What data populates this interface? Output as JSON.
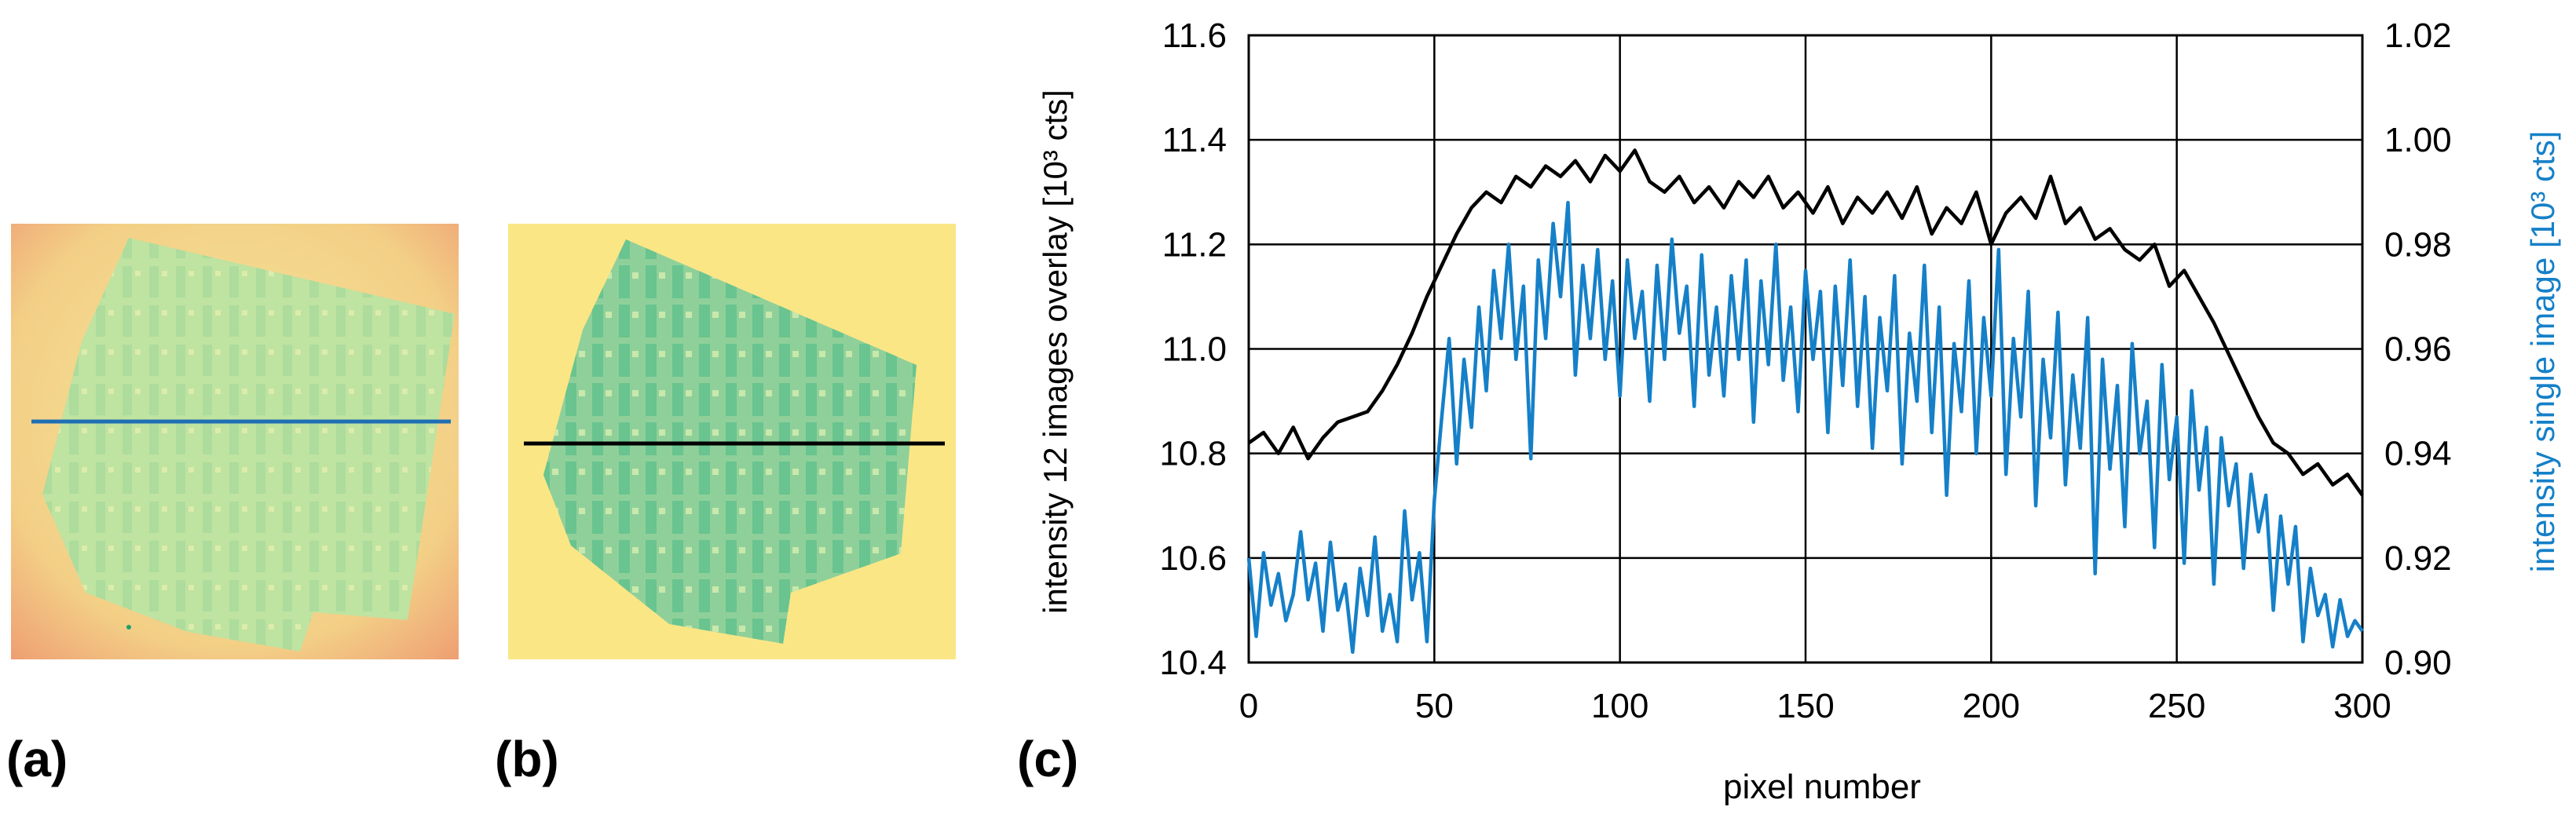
{
  "panels": {
    "a": {
      "label": "(a)",
      "line_color": "#1F6FB5"
    },
    "b": {
      "label": "(b)",
      "line_color": "#000000"
    },
    "c": {
      "label": "(c)"
    }
  },
  "colors": {
    "overlay_series": "#000000",
    "single_series": "#1580C8",
    "right_axis_label": "#1580C8",
    "grid": "#000000"
  },
  "chart_data": {
    "type": "line",
    "xlabel": "pixel number",
    "ylabel": "intensity 12 images overlay [10³ cts]",
    "ylabel_right": "intensity single image [10³ cts]",
    "xlim": [
      0,
      300
    ],
    "ylim": [
      10.4,
      11.6
    ],
    "ylim_right": [
      0.9,
      1.02
    ],
    "xticks": [
      "0",
      "50",
      "100",
      "150",
      "200",
      "250",
      "300"
    ],
    "yticks": [
      "10.4",
      "10.6",
      "10.8",
      "11.0",
      "11.2",
      "11.4",
      "11.6"
    ],
    "yticks_right": [
      "0.90",
      "0.92",
      "0.94",
      "0.96",
      "0.98",
      "1.00",
      "1.02"
    ],
    "grid": true,
    "series": [
      {
        "name": "intensity 12 images overlay",
        "axis": "left",
        "color": "#000000",
        "x": [
          0,
          4,
          8,
          12,
          16,
          20,
          24,
          28,
          32,
          36,
          40,
          44,
          48,
          52,
          56,
          60,
          64,
          68,
          72,
          76,
          80,
          84,
          88,
          92,
          96,
          100,
          104,
          108,
          112,
          116,
          120,
          124,
          128,
          132,
          136,
          140,
          144,
          148,
          152,
          156,
          160,
          164,
          168,
          172,
          176,
          180,
          184,
          188,
          192,
          196,
          200,
          204,
          208,
          212,
          216,
          220,
          224,
          228,
          232,
          236,
          240,
          244,
          248,
          252,
          256,
          260,
          264,
          268,
          272,
          276,
          280,
          284,
          288,
          292,
          296,
          300
        ],
        "values": [
          10.82,
          10.84,
          10.8,
          10.85,
          10.79,
          10.83,
          10.86,
          10.87,
          10.88,
          10.92,
          10.97,
          11.03,
          11.1,
          11.16,
          11.22,
          11.27,
          11.3,
          11.28,
          11.33,
          11.31,
          11.35,
          11.33,
          11.36,
          11.32,
          11.37,
          11.34,
          11.38,
          11.32,
          11.3,
          11.33,
          11.28,
          11.31,
          11.27,
          11.32,
          11.29,
          11.33,
          11.27,
          11.3,
          11.26,
          11.31,
          11.24,
          11.29,
          11.26,
          11.3,
          11.25,
          11.31,
          11.22,
          11.27,
          11.24,
          11.3,
          11.2,
          11.26,
          11.29,
          11.25,
          11.33,
          11.24,
          11.27,
          11.21,
          11.23,
          11.19,
          11.17,
          11.2,
          11.12,
          11.15,
          11.1,
          11.05,
          10.99,
          10.93,
          10.87,
          10.82,
          10.8,
          10.76,
          10.78,
          10.74,
          10.76,
          10.72
        ]
      },
      {
        "name": "intensity single image",
        "axis": "right",
        "color": "#1580C8",
        "x": [
          0,
          2,
          4,
          6,
          8,
          10,
          12,
          14,
          16,
          18,
          20,
          22,
          24,
          26,
          28,
          30,
          32,
          34,
          36,
          38,
          40,
          42,
          44,
          46,
          48,
          50,
          52,
          54,
          56,
          58,
          60,
          62,
          64,
          66,
          68,
          70,
          72,
          74,
          76,
          78,
          80,
          82,
          84,
          86,
          88,
          90,
          92,
          94,
          96,
          98,
          100,
          102,
          104,
          106,
          108,
          110,
          112,
          114,
          116,
          118,
          120,
          122,
          124,
          126,
          128,
          130,
          132,
          134,
          136,
          138,
          140,
          142,
          144,
          146,
          148,
          150,
          152,
          154,
          156,
          158,
          160,
          162,
          164,
          166,
          168,
          170,
          172,
          174,
          176,
          178,
          180,
          182,
          184,
          186,
          188,
          190,
          192,
          194,
          196,
          198,
          200,
          202,
          204,
          206,
          208,
          210,
          212,
          214,
          216,
          218,
          220,
          222,
          224,
          226,
          228,
          230,
          232,
          234,
          236,
          238,
          240,
          242,
          244,
          246,
          248,
          250,
          252,
          254,
          256,
          258,
          260,
          262,
          264,
          266,
          268,
          270,
          272,
          274,
          276,
          278,
          280,
          282,
          284,
          286,
          288,
          290,
          292,
          294,
          296,
          298,
          300
        ],
        "values": [
          0.92,
          0.905,
          0.921,
          0.911,
          0.917,
          0.908,
          0.913,
          0.925,
          0.912,
          0.919,
          0.906,
          0.923,
          0.91,
          0.915,
          0.902,
          0.918,
          0.909,
          0.924,
          0.906,
          0.913,
          0.904,
          0.929,
          0.912,
          0.921,
          0.904,
          0.931,
          0.947,
          0.962,
          0.938,
          0.958,
          0.945,
          0.968,
          0.952,
          0.975,
          0.962,
          0.98,
          0.958,
          0.972,
          0.939,
          0.977,
          0.962,
          0.984,
          0.97,
          0.988,
          0.955,
          0.976,
          0.962,
          0.979,
          0.958,
          0.973,
          0.951,
          0.977,
          0.962,
          0.971,
          0.95,
          0.976,
          0.958,
          0.981,
          0.963,
          0.972,
          0.949,
          0.978,
          0.955,
          0.968,
          0.951,
          0.974,
          0.958,
          0.977,
          0.946,
          0.973,
          0.957,
          0.98,
          0.954,
          0.968,
          0.948,
          0.975,
          0.958,
          0.971,
          0.944,
          0.972,
          0.953,
          0.977,
          0.949,
          0.97,
          0.941,
          0.966,
          0.952,
          0.974,
          0.938,
          0.963,
          0.95,
          0.976,
          0.944,
          0.968,
          0.932,
          0.961,
          0.948,
          0.973,
          0.94,
          0.966,
          0.951,
          0.979,
          0.936,
          0.962,
          0.947,
          0.971,
          0.93,
          0.958,
          0.943,
          0.967,
          0.934,
          0.955,
          0.941,
          0.966,
          0.917,
          0.958,
          0.937,
          0.953,
          0.926,
          0.961,
          0.94,
          0.95,
          0.922,
          0.957,
          0.935,
          0.947,
          0.919,
          0.952,
          0.933,
          0.945,
          0.915,
          0.943,
          0.93,
          0.938,
          0.918,
          0.936,
          0.925,
          0.932,
          0.91,
          0.928,
          0.915,
          0.926,
          0.904,
          0.918,
          0.909,
          0.913,
          0.903,
          0.912,
          0.905,
          0.908,
          0.906
        ]
      }
    ]
  }
}
